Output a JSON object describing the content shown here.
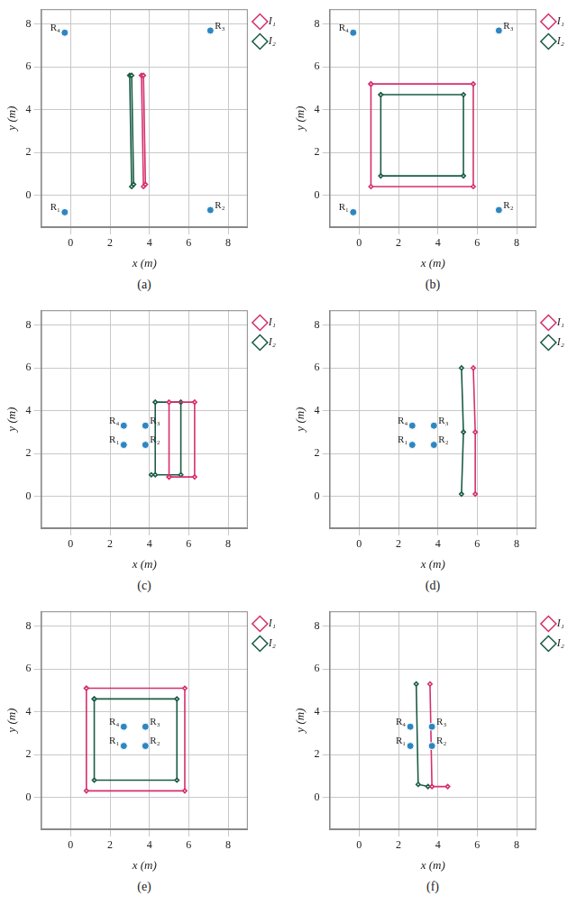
{
  "chart_data": [
    {
      "type": "scatter",
      "caption": "(a)",
      "x_label": "x (m)",
      "y_label": "y (m)",
      "xlim": [
        -1.5,
        9
      ],
      "ylim": [
        -1.5,
        8.7
      ],
      "xticks": [
        0,
        2,
        4,
        6,
        8
      ],
      "yticks": [
        0,
        2,
        4,
        6,
        8
      ],
      "grid": true,
      "legend": "right",
      "anchors": {
        "color": "#2e86c1",
        "marker": "circle",
        "points": [
          {
            "label": "R₁",
            "x": -0.3,
            "y": -0.8
          },
          {
            "label": "R₂",
            "x": 7.1,
            "y": -0.7
          },
          {
            "label": "R₃",
            "x": 7.1,
            "y": 7.7
          },
          {
            "label": "R₄",
            "x": -0.3,
            "y": 7.6
          }
        ]
      },
      "series": [
        {
          "name": "I₁",
          "color": "#d62f6e",
          "marker": "diamond",
          "line_style": "solid",
          "x": [
            3.6,
            3.7,
            3.8,
            3.7
          ],
          "values": [
            5.6,
            0.4,
            0.5,
            5.6
          ]
        },
        {
          "name": "I₂",
          "color": "#1a5c45",
          "marker": "diamond",
          "line_style": "solid",
          "x": [
            3.0,
            3.1,
            3.2,
            3.1
          ],
          "values": [
            5.6,
            0.4,
            0.5,
            5.6
          ]
        }
      ]
    },
    {
      "type": "scatter",
      "caption": "(b)",
      "x_label": "x (m)",
      "y_label": "y (m)",
      "xlim": [
        -1.5,
        9
      ],
      "ylim": [
        -1.5,
        8.7
      ],
      "xticks": [
        0,
        2,
        4,
        6,
        8
      ],
      "yticks": [
        0,
        2,
        4,
        6,
        8
      ],
      "grid": true,
      "legend": "right",
      "anchors": {
        "color": "#2e86c1",
        "marker": "circle",
        "points": [
          {
            "label": "R₁",
            "x": -0.3,
            "y": -0.8
          },
          {
            "label": "R₂",
            "x": 7.1,
            "y": -0.7
          },
          {
            "label": "R₃",
            "x": 7.1,
            "y": 7.7
          },
          {
            "label": "R₄",
            "x": -0.3,
            "y": 7.6
          }
        ]
      },
      "series": [
        {
          "name": "I₁",
          "color": "#d62f6e",
          "marker": "diamond",
          "line_style": "solid",
          "x": [
            0.6,
            5.8,
            5.8,
            0.6,
            0.6
          ],
          "values": [
            5.2,
            5.2,
            0.4,
            0.4,
            5.2
          ]
        },
        {
          "name": "I₂",
          "color": "#1a5c45",
          "marker": "diamond",
          "line_style": "solid",
          "x": [
            1.1,
            5.3,
            5.3,
            1.1,
            1.1
          ],
          "values": [
            4.7,
            4.7,
            0.9,
            0.9,
            4.7
          ]
        }
      ]
    },
    {
      "type": "scatter",
      "caption": "(c)",
      "x_label": "x (m)",
      "y_label": "y (m)",
      "xlim": [
        -1.5,
        9
      ],
      "ylim": [
        -1.5,
        8.7
      ],
      "xticks": [
        0,
        2,
        4,
        6,
        8
      ],
      "yticks": [
        0,
        2,
        4,
        6,
        8
      ],
      "grid": true,
      "legend": "right",
      "anchors": {
        "color": "#2e86c1",
        "marker": "circle",
        "points": [
          {
            "label": "R₁",
            "x": 2.7,
            "y": 2.4
          },
          {
            "label": "R₂",
            "x": 3.8,
            "y": 2.4
          },
          {
            "label": "R₃",
            "x": 3.8,
            "y": 3.3
          },
          {
            "label": "R₄",
            "x": 2.7,
            "y": 3.3
          }
        ]
      },
      "series": [
        {
          "name": "I₁",
          "color": "#d62f6e",
          "marker": "diamond",
          "line_style": "solid",
          "x": [
            5.0,
            5.0,
            6.3,
            6.3,
            5.0
          ],
          "values": [
            0.9,
            4.4,
            4.4,
            0.9,
            0.9
          ]
        },
        {
          "name": "I₂",
          "color": "#1a5c45",
          "marker": "diamond",
          "line_style": "solid",
          "x": [
            4.3,
            4.3,
            5.6,
            5.6,
            4.1
          ],
          "values": [
            1.0,
            4.4,
            4.4,
            1.0,
            1.0
          ]
        }
      ]
    },
    {
      "type": "scatter",
      "caption": "(d)",
      "x_label": "x (m)",
      "y_label": "y (m)",
      "xlim": [
        -1.5,
        9
      ],
      "ylim": [
        -1.5,
        8.7
      ],
      "xticks": [
        0,
        2,
        4,
        6,
        8
      ],
      "yticks": [
        0,
        2,
        4,
        6,
        8
      ],
      "grid": true,
      "legend": "right",
      "anchors": {
        "color": "#2e86c1",
        "marker": "circle",
        "points": [
          {
            "label": "R₁",
            "x": 2.7,
            "y": 2.4
          },
          {
            "label": "R₂",
            "x": 3.8,
            "y": 2.4
          },
          {
            "label": "R₃",
            "x": 3.8,
            "y": 3.3
          },
          {
            "label": "R₄",
            "x": 2.7,
            "y": 3.3
          }
        ]
      },
      "series": [
        {
          "name": "I₁",
          "color": "#d62f6e",
          "marker": "diamond",
          "line_style": "solid",
          "x": [
            5.8,
            5.9,
            5.9
          ],
          "values": [
            6.0,
            3.0,
            0.1
          ]
        },
        {
          "name": "I₂",
          "color": "#1a5c45",
          "marker": "diamond",
          "line_style": "solid",
          "x": [
            5.2,
            5.3,
            5.2
          ],
          "values": [
            6.0,
            3.0,
            0.1
          ]
        }
      ]
    },
    {
      "type": "scatter",
      "caption": "(e)",
      "x_label": "x (m)",
      "y_label": "y (m)",
      "xlim": [
        -1.5,
        9
      ],
      "ylim": [
        -1.5,
        8.7
      ],
      "xticks": [
        0,
        2,
        4,
        6,
        8
      ],
      "yticks": [
        0,
        2,
        4,
        6,
        8
      ],
      "grid": true,
      "legend": "right",
      "anchors": {
        "color": "#2e86c1",
        "marker": "circle",
        "points": [
          {
            "label": "R₁",
            "x": 2.7,
            "y": 2.4
          },
          {
            "label": "R₂",
            "x": 3.8,
            "y": 2.4
          },
          {
            "label": "R₃",
            "x": 3.8,
            "y": 3.3
          },
          {
            "label": "R₄",
            "x": 2.7,
            "y": 3.3
          }
        ]
      },
      "series": [
        {
          "name": "I₁",
          "color": "#d62f6e",
          "marker": "diamond",
          "line_style": "solid",
          "x": [
            0.8,
            5.8,
            5.8,
            0.8,
            0.8
          ],
          "values": [
            5.1,
            5.1,
            0.3,
            0.3,
            5.1
          ]
        },
        {
          "name": "I₂",
          "color": "#1a5c45",
          "marker": "diamond",
          "line_style": "solid",
          "x": [
            1.2,
            5.4,
            5.4,
            1.2,
            1.2
          ],
          "values": [
            4.6,
            4.6,
            0.8,
            0.8,
            4.6
          ]
        }
      ]
    },
    {
      "type": "scatter",
      "caption": "(f)",
      "x_label": "x (m)",
      "y_label": "y (m)",
      "xlim": [
        -1.5,
        9
      ],
      "ylim": [
        -1.5,
        8.7
      ],
      "xticks": [
        0,
        2,
        4,
        6,
        8
      ],
      "yticks": [
        0,
        2,
        4,
        6,
        8
      ],
      "grid": true,
      "legend": "right",
      "anchors": {
        "color": "#2e86c1",
        "marker": "circle",
        "points": [
          {
            "label": "R₁",
            "x": 2.6,
            "y": 2.4
          },
          {
            "label": "R₂",
            "x": 3.7,
            "y": 2.4
          },
          {
            "label": "R₃",
            "x": 3.7,
            "y": 3.3
          },
          {
            "label": "R₄",
            "x": 2.6,
            "y": 3.3
          }
        ]
      },
      "series": [
        {
          "name": "I₁",
          "color": "#d62f6e",
          "marker": "diamond",
          "line_style": "solid",
          "x": [
            3.6,
            3.7,
            4.5
          ],
          "values": [
            5.3,
            0.5,
            0.5
          ]
        },
        {
          "name": "I₂",
          "color": "#1a5c45",
          "marker": "diamond",
          "line_style": "solid",
          "x": [
            2.9,
            3.0,
            3.5
          ],
          "values": [
            5.3,
            0.6,
            0.5
          ]
        }
      ]
    }
  ]
}
